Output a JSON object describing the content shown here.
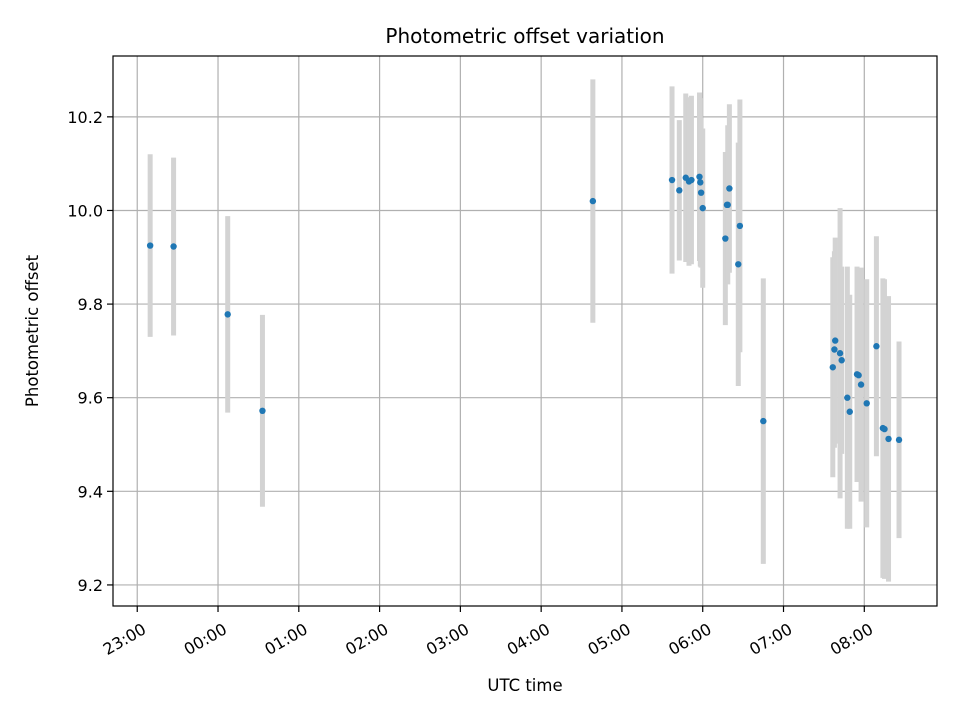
{
  "chart_data": {
    "type": "scatter",
    "title": "Photometric offset variation",
    "xlabel": "UTC time",
    "ylabel": "Photometric offset",
    "x_tick_labels": [
      "23:00",
      "00:00",
      "01:00",
      "02:00",
      "03:00",
      "04:00",
      "05:00",
      "06:00",
      "07:00",
      "08:00"
    ],
    "x_tick_values_hours": [
      23,
      24,
      25,
      26,
      27,
      28,
      29,
      30,
      31,
      32
    ],
    "xlim_hours": [
      22.7,
      32.9
    ],
    "y_tick_labels": [
      "9.2",
      "9.4",
      "9.6",
      "9.8",
      "10.0",
      "10.2"
    ],
    "y_tick_values": [
      9.2,
      9.4,
      9.6,
      9.8,
      10.0,
      10.2
    ],
    "ylim": [
      9.155,
      10.33
    ],
    "grid": true,
    "marker_color": "#1f77b4",
    "errorbar_color": "#d3d3d3",
    "points": [
      {
        "time": "23:09",
        "t": 23.16,
        "y": 9.925,
        "err": 0.195
      },
      {
        "time": "23:27",
        "t": 23.45,
        "y": 9.923,
        "err": 0.19
      },
      {
        "time": "00:07",
        "t": 24.12,
        "y": 9.778,
        "err": 0.21
      },
      {
        "time": "00:33",
        "t": 24.55,
        "y": 9.572,
        "err": 0.205
      },
      {
        "time": "04:38",
        "t": 28.64,
        "y": 10.02,
        "err": 0.26
      },
      {
        "time": "05:37",
        "t": 29.62,
        "y": 10.065,
        "err": 0.2
      },
      {
        "time": "05:42",
        "t": 29.71,
        "y": 10.043,
        "err": 0.15
      },
      {
        "time": "05:47",
        "t": 29.79,
        "y": 10.07,
        "err": 0.18
      },
      {
        "time": "05:50",
        "t": 29.83,
        "y": 10.062,
        "err": 0.18
      },
      {
        "time": "05:51",
        "t": 29.86,
        "y": 10.065,
        "err": 0.18
      },
      {
        "time": "05:58",
        "t": 29.96,
        "y": 10.072,
        "err": 0.18
      },
      {
        "time": "05:58",
        "t": 29.97,
        "y": 10.06,
        "err": 0.18
      },
      {
        "time": "05:59",
        "t": 29.98,
        "y": 10.038,
        "err": 0.16
      },
      {
        "time": "06:00",
        "t": 30.0,
        "y": 10.005,
        "err": 0.17
      },
      {
        "time": "06:17",
        "t": 30.28,
        "y": 9.94,
        "err": 0.185
      },
      {
        "time": "06:18",
        "t": 30.3,
        "y": 10.012,
        "err": 0.11
      },
      {
        "time": "06:19",
        "t": 30.31,
        "y": 10.012,
        "err": 0.17
      },
      {
        "time": "06:20",
        "t": 30.33,
        "y": 10.047,
        "err": 0.18
      },
      {
        "time": "06:27",
        "t": 30.44,
        "y": 9.885,
        "err": 0.26
      },
      {
        "time": "06:28",
        "t": 30.46,
        "y": 9.967,
        "err": 0.27
      },
      {
        "time": "06:45",
        "t": 30.75,
        "y": 9.55,
        "err": 0.305
      },
      {
        "time": "07:37",
        "t": 31.61,
        "y": 9.665,
        "err": 0.235
      },
      {
        "time": "07:38",
        "t": 31.63,
        "y": 9.703,
        "err": 0.21
      },
      {
        "time": "07:39",
        "t": 31.64,
        "y": 9.722,
        "err": 0.22
      },
      {
        "time": "07:42",
        "t": 31.7,
        "y": 9.695,
        "err": 0.31
      },
      {
        "time": "07:43",
        "t": 31.72,
        "y": 9.68,
        "err": 0.2
      },
      {
        "time": "07:47",
        "t": 31.79,
        "y": 9.6,
        "err": 0.28
      },
      {
        "time": "07:49",
        "t": 31.82,
        "y": 9.57,
        "err": 0.25
      },
      {
        "time": "07:55",
        "t": 31.91,
        "y": 9.65,
        "err": 0.23
      },
      {
        "time": "07:56",
        "t": 31.93,
        "y": 9.648,
        "err": 0.2
      },
      {
        "time": "07:58",
        "t": 31.96,
        "y": 9.628,
        "err": 0.25
      },
      {
        "time": "08:02",
        "t": 32.03,
        "y": 9.588,
        "err": 0.265
      },
      {
        "time": "08:09",
        "t": 32.15,
        "y": 9.71,
        "err": 0.235
      },
      {
        "time": "08:14",
        "t": 32.23,
        "y": 9.535,
        "err": 0.32
      },
      {
        "time": "08:15",
        "t": 32.25,
        "y": 9.533,
        "err": 0.32
      },
      {
        "time": "08:18",
        "t": 32.3,
        "y": 9.512,
        "err": 0.305
      },
      {
        "time": "08:26",
        "t": 32.43,
        "y": 9.51,
        "err": 0.21
      }
    ]
  }
}
